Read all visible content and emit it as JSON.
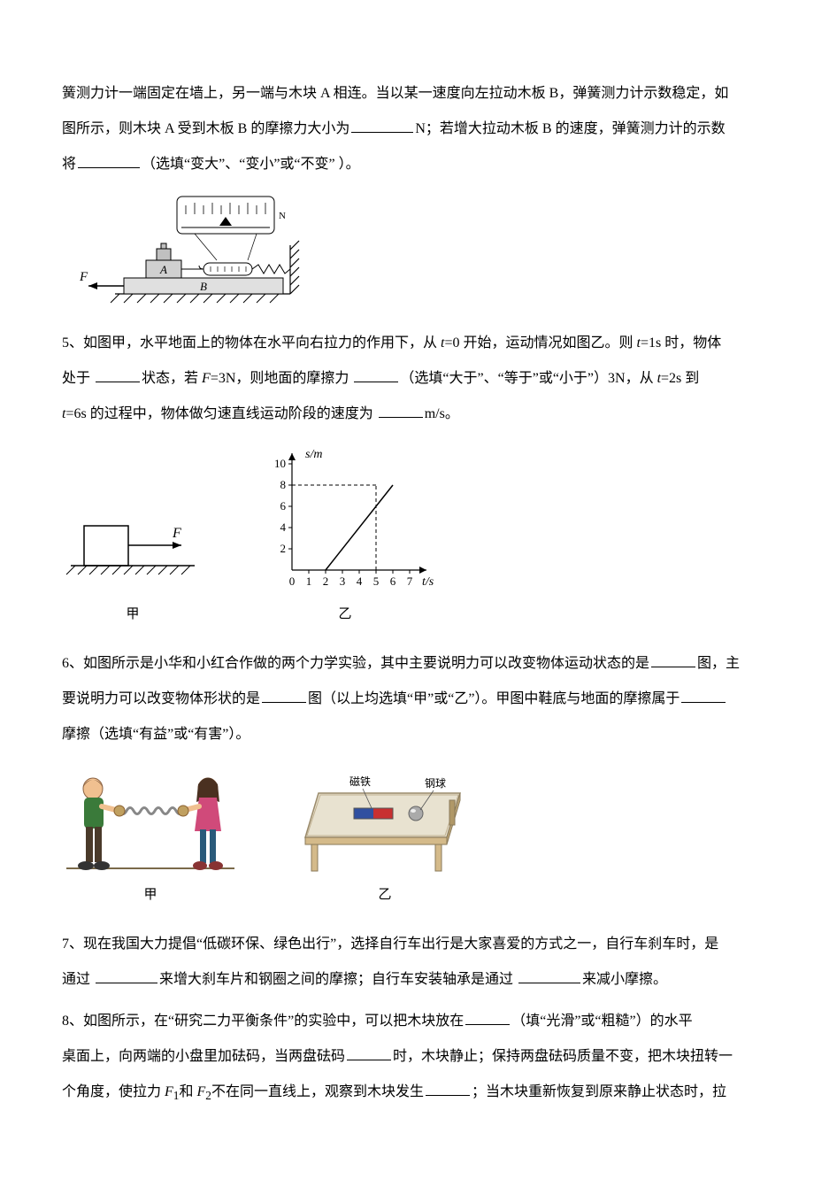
{
  "q4": {
    "line1_a": "簧测力计一端固定在墙上，另一端与木块 A 相连。当以某一速度向左拉动木板 B，弹簧测力计示数稳定，如",
    "line2_a": "图所示，则木块 A 受到木板 B 的摩擦力大小为",
    "line2_b": "N；若增大拉动木板 B 的速度，弹簧测力计的示数",
    "line3_a": "将",
    "line3_b": "（选填“变大”、“变小”或“不变” ）。",
    "fig": {
      "F": "F",
      "A": "A",
      "B": "B",
      "N": "N"
    }
  },
  "q5": {
    "prefix": "5、如图甲，水平地面上的物体在水平向右拉力的作用下，从 ",
    "t0": "t",
    "eq0": "=0 开始，运动情况如图乙。则 ",
    "t1": "t",
    "eq1": "=1s 时，物体",
    "line2_a": "处于 ",
    "line2_b": "状态，若 ",
    "Fvar": "F",
    "line2_c": "=3N，则地面的摩擦力 ",
    "line2_d": "（选填“大于”、“等于”或“小于”）3N，从 ",
    "t2": "t",
    "eq2": "=2s 到",
    "line3_a": " ",
    "t3": "t",
    "eq3": "=6s 的过程中，物体做匀速直线运动阶段的速度为 ",
    "line3_b": "m/s。",
    "cap_jia": "甲",
    "cap_yi": "乙",
    "chart": {
      "ylabel": "s/m",
      "xlabel": "t/s",
      "yticks": [
        2,
        4,
        6,
        8,
        10
      ],
      "xticks": [
        0,
        1,
        2,
        3,
        4,
        5,
        6,
        7
      ],
      "dashed_y": 8,
      "dashed_x": 5,
      "line": [
        [
          2,
          0
        ],
        [
          6,
          8
        ]
      ]
    },
    "F_arrow": "F"
  },
  "q6": {
    "line1_a": "6、如图所示是小华和小红合作做的两个力学实验，其中主要说明力可以改变物体运动状态的是",
    "line1_b": "图，主",
    "line2_a": "要说明力可以改变物体形状的是",
    "line2_b": "图（以上均选填“甲”或“乙”）。甲图中鞋底与地面的摩擦属于",
    "line3_a": "摩擦（选填“有益”或“有害”）。",
    "cap_jia": "甲",
    "cap_yi": "乙",
    "magnet": "磁铁",
    "ball": "钢球"
  },
  "q7": {
    "line1_a": "7、现在我国大力提倡“低碳环保、绿色出行”，选择自行车出行是大家喜爱的方式之一，自行车刹车时，是",
    "line2_a": "通过 ",
    "line2_b": "来增大刹车片和钢圈之间的摩擦；自行车安装轴承是通过 ",
    "line2_c": "来减小摩擦。"
  },
  "q8": {
    "line1_a": "8、如图所示，在“研究二力平衡条件”的实验中，可以把木块放在",
    "line1_b": "（填“光滑”或“粗糙”）的水平",
    "line2_a": "桌面上，向两端的小盘里加砝码，当两盘砝码",
    "line2_b": "时，木块静止；保持两盘砝码质量不变，把木块扭转一",
    "line3_a": "个角度，使拉力 ",
    "F1": "F",
    "sub1": "1",
    "and": "和 ",
    "F2": "F",
    "sub2": "2",
    "line3_b": "不在同一直线上，观察到木块发生",
    "line3_c": "；当木块重新恢复到原来静止状态时，拉"
  },
  "colors": {
    "text": "#000000",
    "bg": "#ffffff",
    "axis": "#000000",
    "hatch": "#000000",
    "person1_shirt": "#3a7a3a",
    "person1_pants": "#4a3a2a",
    "person2_shirt": "#d04a7a",
    "person2_pants": "#2a5a7a",
    "skin": "#f0c090",
    "hair": "#4a3020",
    "spring": "#888888",
    "table_wood": "#d4ba8a",
    "table_top": "#e8e2d0",
    "magnet_red": "#c83030",
    "magnet_blue": "#3050a0",
    "ball_gray": "#aaaaaa"
  }
}
